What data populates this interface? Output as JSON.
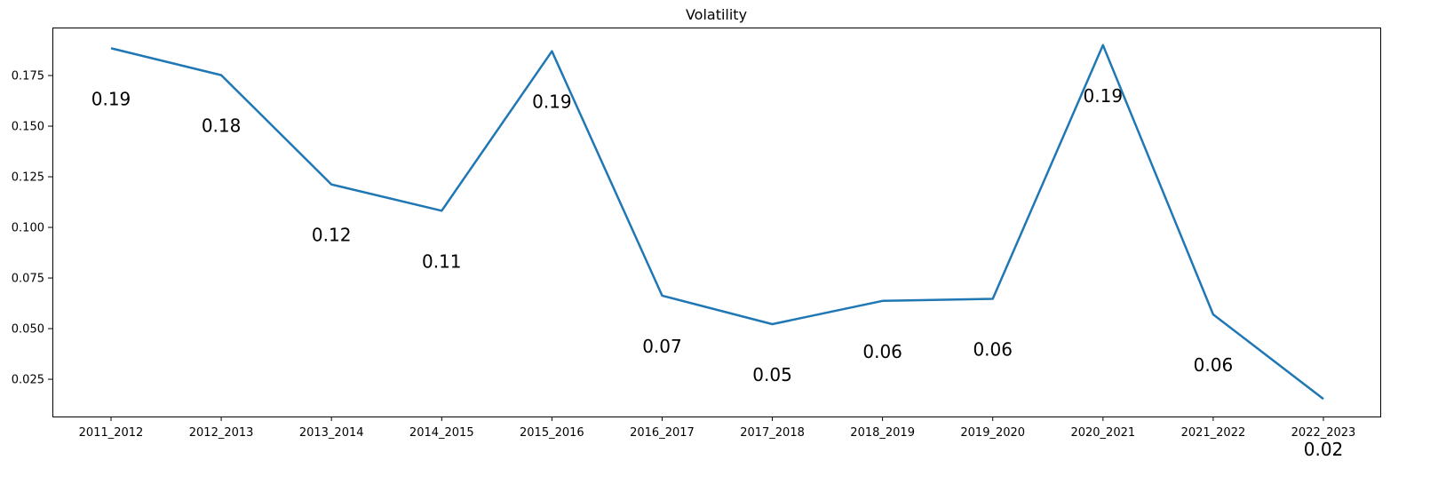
{
  "chart_data": {
    "type": "line",
    "title": "Volatility",
    "xlabel": "",
    "ylabel": "",
    "categories": [
      "2011_2012",
      "2012_2013",
      "2013_2014",
      "2014_2015",
      "2015_2016",
      "2016_2017",
      "2017_2018",
      "2018_2019",
      "2019_2020",
      "2020_2021",
      "2021_2022",
      "2022_2023"
    ],
    "series": [
      {
        "values": [
          0.1885,
          0.1752,
          0.1212,
          0.1082,
          0.187,
          0.0663,
          0.0522,
          0.0637,
          0.0647,
          0.19,
          0.057,
          0.0153
        ],
        "color": "#1f77b4"
      }
    ],
    "data_labels": [
      "0.19",
      "0.18",
      "0.12",
      "0.11",
      "0.19",
      "0.07",
      "0.05",
      "0.06",
      "0.06",
      "0.19",
      "0.06",
      "0.02"
    ],
    "yticks": [
      0.025,
      0.05,
      0.075,
      0.1,
      0.125,
      0.15,
      0.175
    ],
    "ytick_labels": [
      "0.025",
      "0.050",
      "0.075",
      "0.100",
      "0.125",
      "0.150",
      "0.175"
    ],
    "ylim": [
      0.0066,
      0.1987
    ],
    "grid": false,
    "legend": "none"
  }
}
